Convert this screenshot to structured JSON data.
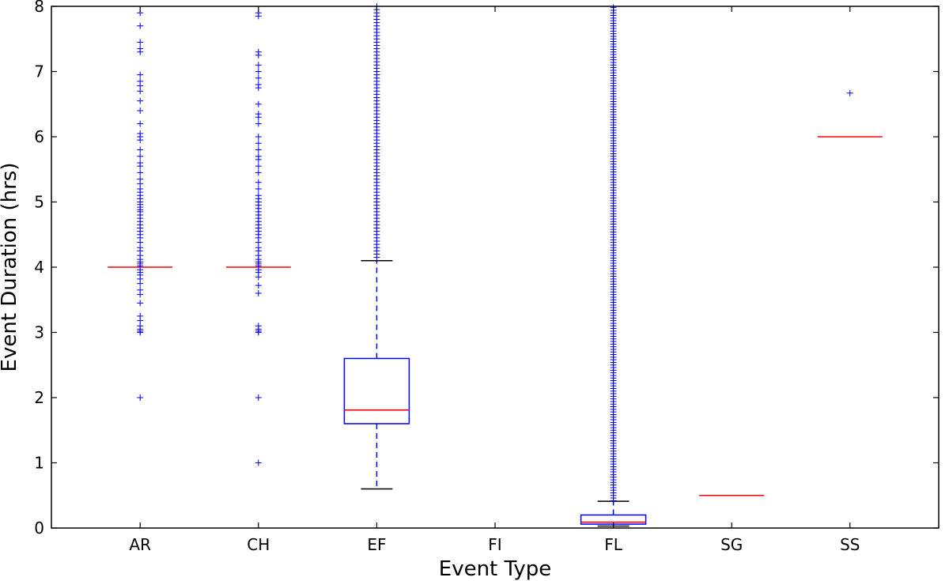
{
  "chart_data": {
    "type": "box",
    "title": "",
    "xlabel": "Event Type",
    "ylabel": "Event Duration (hrs)",
    "ylim": [
      0,
      8
    ],
    "yticks": [
      0,
      1,
      2,
      3,
      4,
      5,
      6,
      7,
      8
    ],
    "grid": false,
    "categories": [
      "AR",
      "CH",
      "EF",
      "FI",
      "FL",
      "SG",
      "SS"
    ],
    "colors": {
      "box": "#0000ff",
      "median": "#ff0000",
      "cap": "#000000",
      "flier": "#0000ff"
    },
    "boxes": [
      {
        "category": "AR",
        "q1": 4.0,
        "median": 4.0,
        "q3": 4.0,
        "whisker_low": 4.0,
        "whisker_high": 4.0,
        "fliers": [
          2.0,
          3.0,
          3.02,
          3.05,
          3.1,
          3.18,
          3.25,
          3.45,
          3.58,
          3.65,
          3.75,
          3.82,
          3.88,
          3.92,
          3.96,
          4.02,
          4.05,
          4.08,
          4.12,
          4.18,
          4.25,
          4.3,
          4.38,
          4.45,
          4.5,
          4.55,
          4.6,
          4.65,
          4.7,
          4.75,
          4.8,
          4.85,
          4.88,
          4.92,
          4.96,
          5.0,
          5.05,
          5.1,
          5.15,
          5.2,
          5.28,
          5.35,
          5.45,
          5.55,
          5.6,
          5.7,
          5.8,
          5.95,
          6.0,
          6.05,
          6.2,
          6.4,
          6.55,
          6.7,
          6.78,
          6.85,
          6.95,
          7.3,
          7.35,
          7.45,
          7.7,
          7.9
        ]
      },
      {
        "category": "CH",
        "q1": 4.0,
        "median": 4.0,
        "q3": 4.0,
        "whisker_low": 4.0,
        "whisker_high": 4.0,
        "fliers": [
          1.0,
          2.0,
          3.0,
          3.02,
          3.05,
          3.1,
          3.6,
          3.72,
          3.85,
          3.92,
          3.96,
          4.02,
          4.05,
          4.08,
          4.12,
          4.18,
          4.25,
          4.3,
          4.38,
          4.45,
          4.5,
          4.55,
          4.6,
          4.65,
          4.7,
          4.75,
          4.8,
          4.85,
          4.9,
          4.95,
          5.0,
          5.05,
          5.1,
          5.2,
          5.3,
          5.45,
          5.55,
          5.65,
          5.7,
          5.8,
          5.9,
          6.0,
          6.2,
          6.3,
          6.35,
          6.5,
          6.75,
          6.8,
          6.9,
          7.0,
          7.1,
          7.25,
          7.3,
          7.85,
          7.9
        ]
      },
      {
        "category": "EF",
        "q1": 1.6,
        "median": 1.81,
        "q3": 2.6,
        "whisker_low": 0.6,
        "whisker_high": 4.1,
        "fliers": [
          4.15,
          4.2,
          4.25,
          4.3,
          4.35,
          4.4,
          4.45,
          4.5,
          4.55,
          4.6,
          4.65,
          4.7,
          4.75,
          4.8,
          4.85,
          4.9,
          4.95,
          5.0,
          5.05,
          5.1,
          5.15,
          5.2,
          5.25,
          5.3,
          5.35,
          5.4,
          5.45,
          5.5,
          5.55,
          5.6,
          5.65,
          5.7,
          5.75,
          5.8,
          5.85,
          5.9,
          5.95,
          6.0,
          6.05,
          6.1,
          6.15,
          6.2,
          6.25,
          6.3,
          6.35,
          6.4,
          6.45,
          6.5,
          6.55,
          6.6,
          6.65,
          6.7,
          6.75,
          6.8,
          6.85,
          6.9,
          6.95,
          7.0,
          7.05,
          7.1,
          7.15,
          7.2,
          7.25,
          7.3,
          7.35,
          7.4,
          7.45,
          7.5,
          7.55,
          7.6,
          7.65,
          7.7,
          7.75,
          7.8,
          7.85,
          7.9,
          7.95,
          8.0
        ]
      },
      {
        "category": "FI"
      },
      {
        "category": "FL",
        "q1": 0.06,
        "median": 0.09,
        "q3": 0.2,
        "whisker_low": 0.03,
        "whisker_high": 0.41,
        "fliers_range": [
          0.42,
          8.0
        ]
      },
      {
        "category": "SG",
        "q1": 0.5,
        "median": 0.5,
        "q3": 0.5,
        "whisker_low": 0.5,
        "whisker_high": 0.5,
        "fliers": []
      },
      {
        "category": "SS",
        "q1": 6.0,
        "median": 6.0,
        "q3": 6.0,
        "whisker_low": 6.0,
        "whisker_high": 6.0,
        "fliers": [
          6.67
        ]
      }
    ]
  }
}
